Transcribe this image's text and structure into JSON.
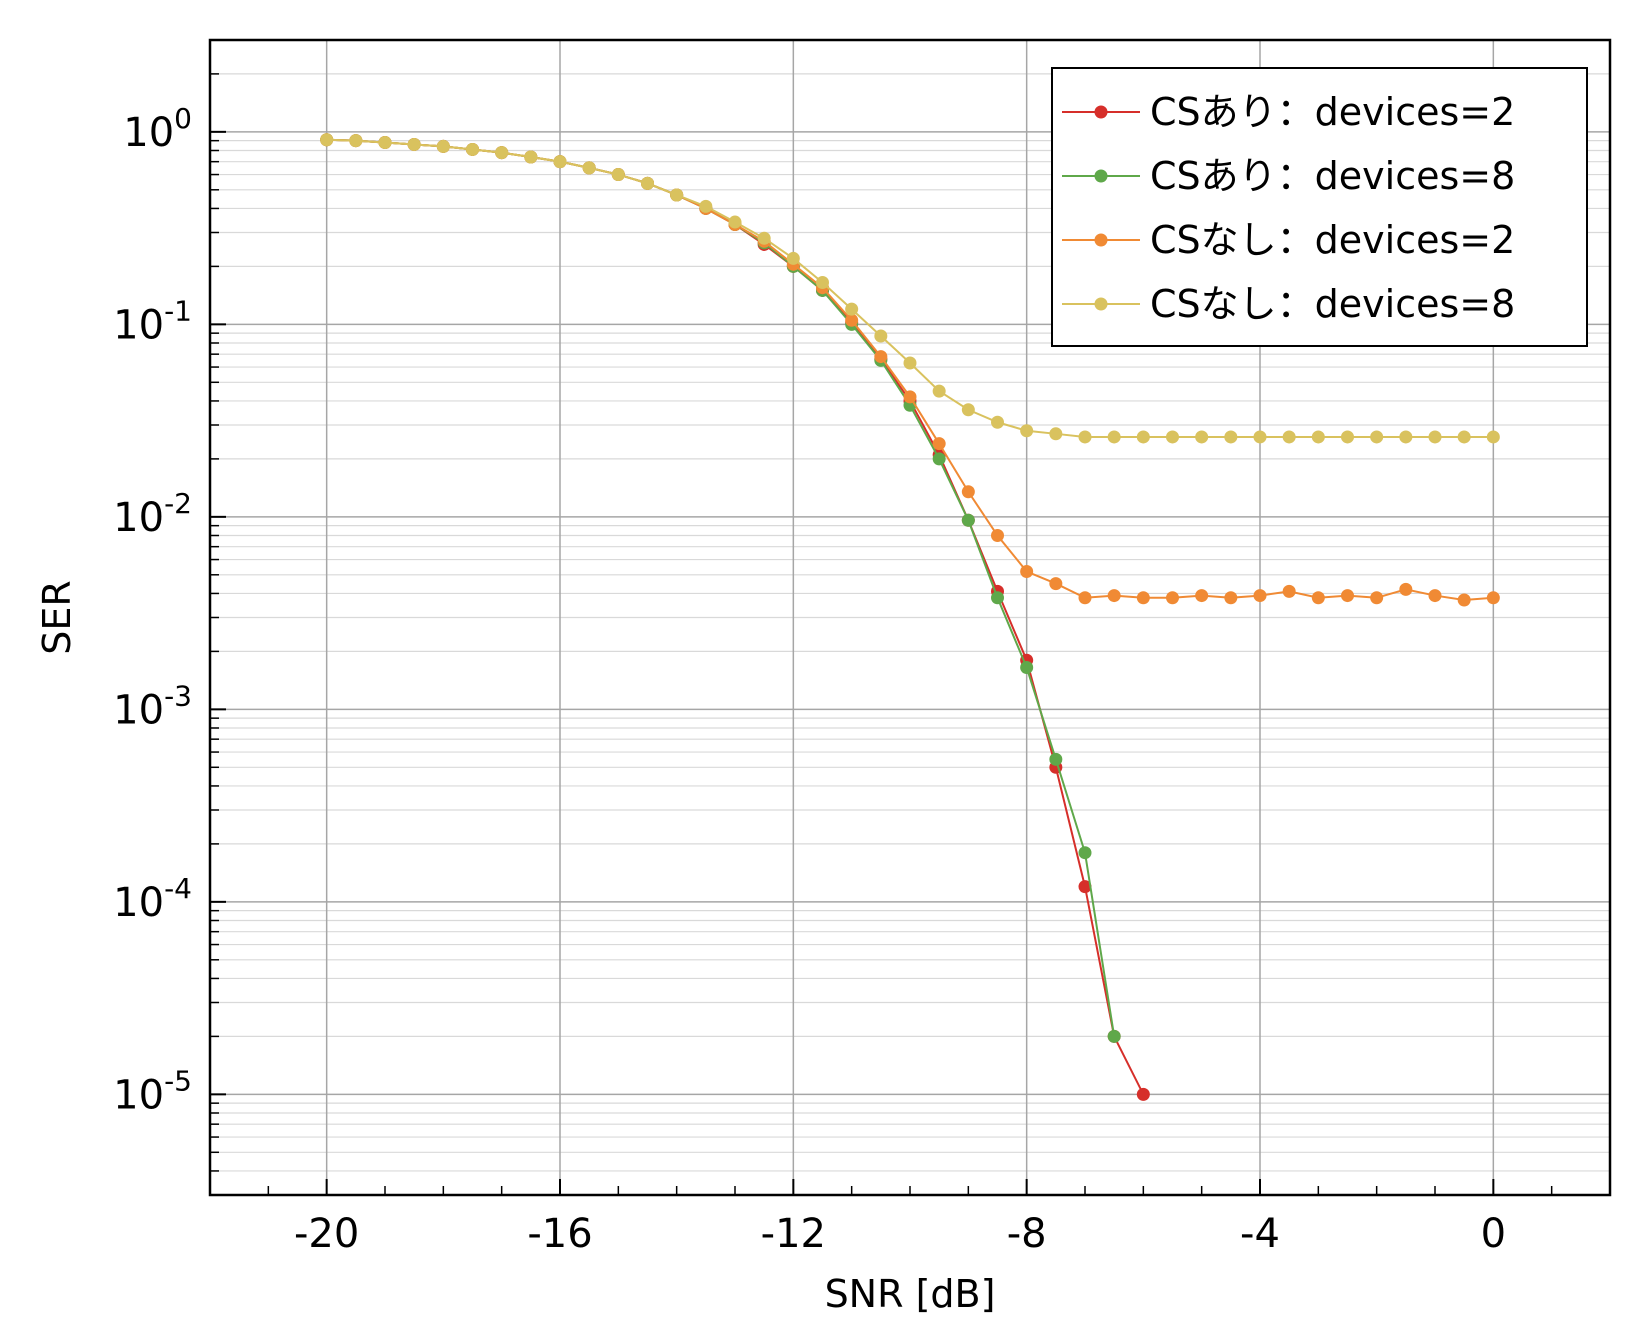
{
  "chart_data": {
    "type": "line",
    "title": "",
    "xlabel": "SNR [dB]",
    "ylabel": "SER",
    "xscale": "linear",
    "yscale": "log",
    "xlim": [
      -22,
      2
    ],
    "ylim": [
      3e-06,
      3
    ],
    "xticks": [
      {
        "value": -20,
        "label": "-20"
      },
      {
        "value": -16,
        "label": "-16"
      },
      {
        "value": -12,
        "label": "-12"
      },
      {
        "value": -8,
        "label": "-8"
      },
      {
        "value": -4,
        "label": "-4"
      },
      {
        "value": 0,
        "label": "0"
      }
    ],
    "yticks": [
      {
        "exp": 0,
        "base": "10",
        "sup": "0"
      },
      {
        "exp": -1,
        "base": "10",
        "sup": "-1"
      },
      {
        "exp": -2,
        "base": "10",
        "sup": "-2"
      },
      {
        "exp": -3,
        "base": "10",
        "sup": "-3"
      },
      {
        "exp": -4,
        "base": "10",
        "sup": "-4"
      },
      {
        "exp": -5,
        "base": "10",
        "sup": "-5"
      }
    ],
    "grid": true,
    "legend_position": "top-right",
    "series": [
      {
        "name": "CSあり：devices=2",
        "color": "#d62f2a",
        "x": [
          -20,
          -19.5,
          -19,
          -18.5,
          -18,
          -17.5,
          -17,
          -16.5,
          -16,
          -15.5,
          -15,
          -14.5,
          -14,
          -13.5,
          -13,
          -12.5,
          -12,
          -11.5,
          -11,
          -10.5,
          -10,
          -9.5,
          -9,
          -8.5,
          -8,
          -7.5,
          -7,
          -6.5,
          -6
        ],
        "y": [
          0.91,
          0.9,
          0.88,
          0.86,
          0.84,
          0.81,
          0.78,
          0.74,
          0.7,
          0.65,
          0.6,
          0.54,
          0.47,
          0.4,
          0.33,
          0.26,
          0.2,
          0.15,
          0.102,
          0.066,
          0.04,
          0.021,
          0.0096,
          0.0041,
          0.0018,
          0.0005,
          0.00012,
          2e-05,
          1e-05
        ]
      },
      {
        "name": "CSあり：devices=8",
        "color": "#5fa84a",
        "x": [
          -20,
          -19.5,
          -19,
          -18.5,
          -18,
          -17.5,
          -17,
          -16.5,
          -16,
          -15.5,
          -15,
          -14.5,
          -14,
          -13.5,
          -13,
          -12.5,
          -12,
          -11.5,
          -11,
          -10.5,
          -10,
          -9.5,
          -9,
          -8.5,
          -8,
          -7.5,
          -7,
          -6.5
        ],
        "y": [
          0.91,
          0.9,
          0.88,
          0.86,
          0.84,
          0.81,
          0.78,
          0.74,
          0.7,
          0.65,
          0.6,
          0.54,
          0.47,
          0.4,
          0.33,
          0.265,
          0.2,
          0.15,
          0.1,
          0.065,
          0.038,
          0.02,
          0.0096,
          0.0038,
          0.00165,
          0.00055,
          0.00018,
          2e-05
        ]
      },
      {
        "name": "CSなし：devices=2",
        "color": "#f08a34",
        "x": [
          -20,
          -19.5,
          -19,
          -18.5,
          -18,
          -17.5,
          -17,
          -16.5,
          -16,
          -15.5,
          -15,
          -14.5,
          -14,
          -13.5,
          -13,
          -12.5,
          -12,
          -11.5,
          -11,
          -10.5,
          -10,
          -9.5,
          -9,
          -8.5,
          -8,
          -7.5,
          -7,
          -6.5,
          -6,
          -5.5,
          -5,
          -4.5,
          -4,
          -3.5,
          -3,
          -2.5,
          -2,
          -1.5,
          -1,
          -0.5,
          0
        ],
        "y": [
          0.91,
          0.9,
          0.88,
          0.86,
          0.84,
          0.81,
          0.78,
          0.74,
          0.7,
          0.65,
          0.6,
          0.54,
          0.47,
          0.4,
          0.33,
          0.27,
          0.205,
          0.155,
          0.105,
          0.068,
          0.042,
          0.024,
          0.0135,
          0.008,
          0.0052,
          0.0045,
          0.0038,
          0.0039,
          0.0038,
          0.0038,
          0.0039,
          0.0038,
          0.0039,
          0.0041,
          0.0038,
          0.0039,
          0.0038,
          0.0042,
          0.0039,
          0.0037,
          0.0038
        ]
      },
      {
        "name": "CSなし：devices=8",
        "color": "#d9c25e",
        "x": [
          -20,
          -19.5,
          -19,
          -18.5,
          -18,
          -17.5,
          -17,
          -16.5,
          -16,
          -15.5,
          -15,
          -14.5,
          -14,
          -13.5,
          -13,
          -12.5,
          -12,
          -11.5,
          -11,
          -10.5,
          -10,
          -9.5,
          -9,
          -8.5,
          -8,
          -7.5,
          -7,
          -6.5,
          -6,
          -5.5,
          -5,
          -4.5,
          -4,
          -3.5,
          -3,
          -2.5,
          -2,
          -1.5,
          -1,
          -0.5,
          0
        ],
        "y": [
          0.91,
          0.9,
          0.88,
          0.86,
          0.84,
          0.81,
          0.78,
          0.74,
          0.7,
          0.65,
          0.6,
          0.54,
          0.47,
          0.41,
          0.34,
          0.28,
          0.22,
          0.165,
          0.12,
          0.087,
          0.063,
          0.045,
          0.036,
          0.031,
          0.028,
          0.027,
          0.026,
          0.026,
          0.026,
          0.026,
          0.026,
          0.026,
          0.026,
          0.026,
          0.026,
          0.026,
          0.026,
          0.026,
          0.026,
          0.026,
          0.026
        ]
      }
    ]
  }
}
